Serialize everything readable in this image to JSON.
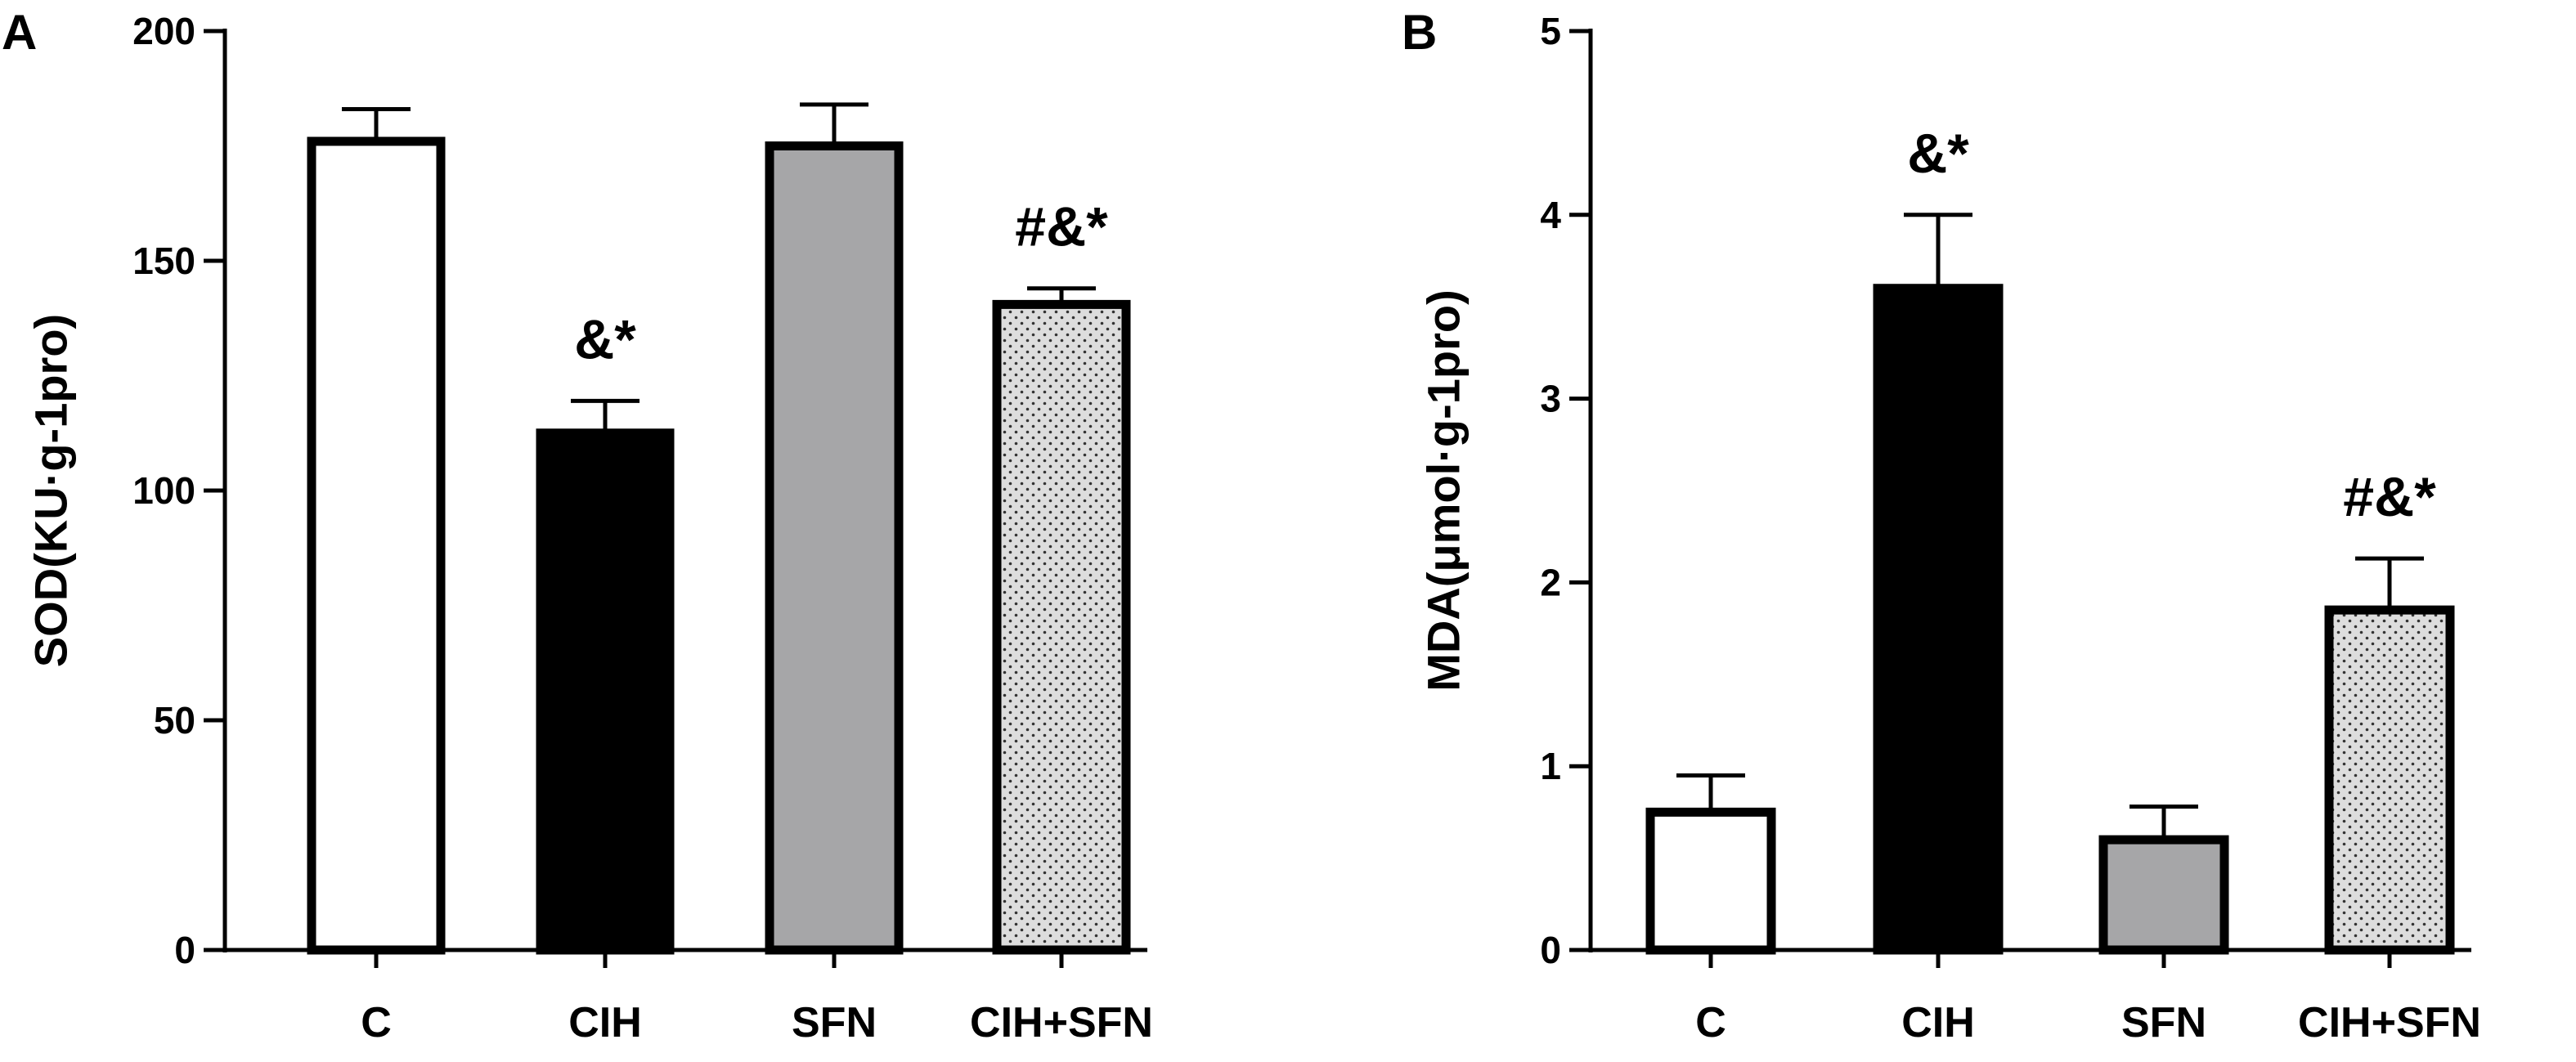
{
  "colors": {
    "axis": "#000000",
    "bar_fill": [
      "#ffffff",
      "#000000",
      "#a6a6a8",
      "#dddddd"
    ],
    "bar_pattern": [
      null,
      null,
      null,
      "dots"
    ],
    "outline": "#000000"
  },
  "chart_data": [
    {
      "type": "bar",
      "panel_label": "A",
      "title": "",
      "xlabel": "",
      "ylabel": "SOD(KU·g-1pro)",
      "categories": [
        "C",
        "CIH",
        "SFN",
        "CIH+SFN"
      ],
      "values": [
        176,
        112.5,
        175,
        140.5
      ],
      "error": [
        7,
        7,
        9,
        3.5
      ],
      "annotations": [
        "",
        "&*",
        "",
        "#&*"
      ],
      "ylim": [
        0,
        200
      ],
      "yticks": [
        0,
        50,
        100,
        150,
        200
      ],
      "grid": false
    },
    {
      "type": "bar",
      "panel_label": "B",
      "title": "",
      "xlabel": "",
      "ylabel": "MDA(μmol·g-1pro)",
      "categories": [
        "C",
        "CIH",
        "SFN",
        "CIH+SFN"
      ],
      "values": [
        0.75,
        3.6,
        0.6,
        1.85
      ],
      "error": [
        0.2,
        0.4,
        0.18,
        0.28
      ],
      "annotations": [
        "",
        "&*",
        "",
        "#&*"
      ],
      "ylim": [
        0,
        5
      ],
      "yticks": [
        0,
        1,
        2,
        3,
        4,
        5
      ],
      "grid": false
    }
  ]
}
